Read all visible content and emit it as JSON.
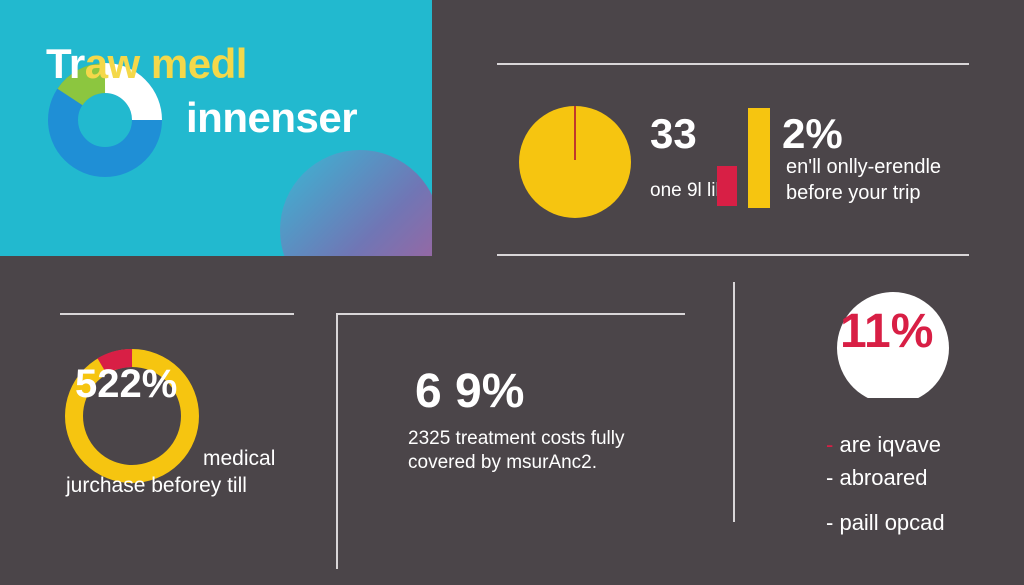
{
  "header": {
    "title_line1_part1": "Tr",
    "title_line1_part2": "aw medl",
    "title_line2": "innenser"
  },
  "stat_top": {
    "value_a": "33",
    "label_a": "one 9l lill",
    "value_b": "2%",
    "text_line1": "en'll onlly-erendle",
    "text_line2": "before your trip"
  },
  "stat_left": {
    "value": "522%",
    "label_line1": "medical",
    "label_line2": "jurchase beforey till"
  },
  "stat_middle": {
    "value": "6 9%",
    "label_line1": "2325 treatment costs fully",
    "label_line2": "covered by msurAnc2."
  },
  "stat_right": {
    "value": "11%",
    "bullets": [
      "are iqvave",
      "abroared",
      "paill opcad"
    ]
  },
  "colors": {
    "background": "#4b4549",
    "header_bg": "#22b9cf",
    "yellow": "#f6c510",
    "red": "#d81f45",
    "blue": "#1f8fd6",
    "green": "#8cc63f"
  }
}
